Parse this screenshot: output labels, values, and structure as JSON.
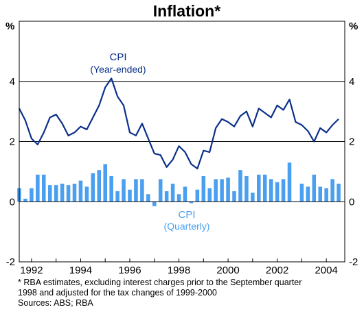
{
  "chart_data": {
    "type": "bar+line",
    "title": "Inflation*",
    "y_unit": "%",
    "ylim": [
      -2,
      6
    ],
    "yticks": [
      -2,
      0,
      2,
      4
    ],
    "yticks_right": [
      -2,
      0,
      2,
      4
    ],
    "xlim": [
      1991.5,
      2004.75
    ],
    "xticks": [
      "1992",
      "1994",
      "1996",
      "1998",
      "2000",
      "2002",
      "2004"
    ],
    "grid": "horizontal",
    "annotations": [
      {
        "series": "CPI (Year-ended)",
        "line1": "CPI",
        "line2": "(Year-ended)"
      },
      {
        "series": "CPI (Quarterly)",
        "line1": "CPI",
        "line2": "(Quarterly)"
      }
    ],
    "series": [
      {
        "name": "CPI (Year-ended)",
        "type": "line",
        "color": "#0a2f8a",
        "x": [
          1991.5,
          1991.75,
          1992.0,
          1992.25,
          1992.5,
          1992.75,
          1993.0,
          1993.25,
          1993.5,
          1993.75,
          1994.0,
          1994.25,
          1994.5,
          1994.75,
          1995.0,
          1995.25,
          1995.5,
          1995.75,
          1996.0,
          1996.25,
          1996.5,
          1996.75,
          1997.0,
          1997.25,
          1997.5,
          1997.75,
          1998.0,
          1998.25,
          1998.5,
          1998.75,
          1999.0,
          1999.25,
          1999.5,
          1999.75,
          2000.0,
          2000.25,
          2000.5,
          2000.75,
          2001.0,
          2001.25,
          2001.5,
          2001.75,
          2002.0,
          2002.25,
          2002.5,
          2002.75,
          2003.0,
          2003.25,
          2003.5,
          2003.75,
          2004.0,
          2004.25,
          2004.5
        ],
        "values": [
          3.1,
          2.7,
          2.1,
          1.9,
          2.3,
          2.8,
          2.9,
          2.6,
          2.2,
          2.3,
          2.5,
          2.4,
          2.8,
          3.2,
          3.8,
          4.1,
          3.5,
          3.2,
          2.3,
          2.2,
          2.6,
          2.1,
          1.6,
          1.55,
          1.15,
          1.4,
          1.85,
          1.65,
          1.25,
          1.1,
          1.7,
          1.65,
          2.45,
          2.75,
          2.65,
          2.5,
          2.85,
          3.0,
          2.5,
          3.1,
          2.95,
          2.8,
          3.2,
          3.05,
          3.4,
          2.65,
          2.55,
          2.35,
          2.0,
          2.45,
          2.3,
          2.55,
          2.75
        ]
      },
      {
        "name": "CPI (Quarterly)",
        "type": "bar",
        "color": "#4a9ff0",
        "x": [
          1991.5,
          1991.75,
          1992.0,
          1992.25,
          1992.5,
          1992.75,
          1993.0,
          1993.25,
          1993.5,
          1993.75,
          1994.0,
          1994.25,
          1994.5,
          1994.75,
          1995.0,
          1995.25,
          1995.5,
          1995.75,
          1996.0,
          1996.25,
          1996.5,
          1996.75,
          1997.0,
          1997.25,
          1997.5,
          1997.75,
          1998.0,
          1998.25,
          1998.5,
          1998.75,
          1999.0,
          1999.25,
          1999.5,
          1999.75,
          2000.0,
          2000.25,
          2000.5,
          2000.75,
          2001.0,
          2001.25,
          2001.5,
          2001.75,
          2002.0,
          2002.25,
          2002.5,
          2002.75,
          2003.0,
          2003.25,
          2003.5,
          2003.75,
          2004.0,
          2004.25,
          2004.5
        ],
        "values": [
          0.45,
          0.1,
          0.45,
          0.9,
          0.9,
          0.55,
          0.55,
          0.6,
          0.55,
          0.6,
          0.7,
          0.5,
          0.95,
          1.05,
          1.25,
          0.85,
          0.35,
          0.75,
          0.4,
          0.75,
          0.75,
          0.25,
          -0.15,
          0.75,
          0.35,
          0.6,
          0.25,
          0.5,
          -0.05,
          0.4,
          0.85,
          0.45,
          0.75,
          0.75,
          0.8,
          0.35,
          1.05,
          0.85,
          0.3,
          0.9,
          0.9,
          0.75,
          0.65,
          0.75,
          1.3,
          0.0,
          0.6,
          0.5,
          0.9,
          0.5,
          0.45,
          0.75,
          0.6
        ]
      }
    ]
  },
  "footnote": {
    "line1": "*   RBA estimates, excluding interest charges prior to the September quarter",
    "line2": "1998 and adjusted for the tax changes of 1999-2000",
    "sources": "Sources: ABS; RBA"
  }
}
